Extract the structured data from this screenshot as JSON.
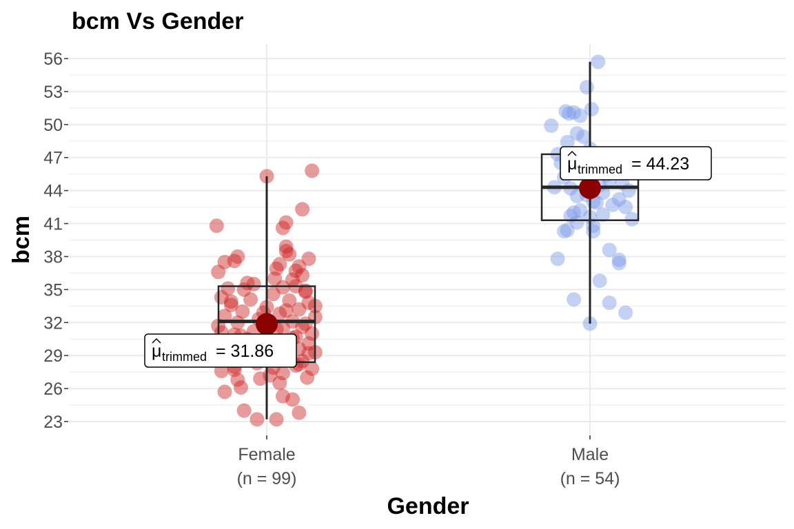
{
  "chart_data": {
    "type": "box-violin-scatter",
    "title": "bcm Vs Gender",
    "xlabel": "Gender",
    "ylabel": "bcm",
    "ylim": [
      22,
      57
    ],
    "yticks": [
      23,
      26,
      29,
      32,
      35,
      38,
      41,
      44,
      47,
      50,
      53,
      56
    ],
    "grid": true,
    "categories": [
      {
        "name": "Female",
        "n_label": "(n = 99)",
        "color": "#cc2222",
        "box": {
          "q1": 28.4,
          "median": 32.1,
          "q3": 35.3,
          "whisker_low": 23.2,
          "whisker_high": 45.3
        },
        "trimmed_mean": 31.86,
        "annotation_value": "= 31.86",
        "points": [
          45.3,
          45.8,
          42.3,
          41.1,
          40.8,
          40.6,
          38.9,
          38.2,
          38.0,
          37.8,
          37.6,
          37.5,
          37.1,
          36.9,
          36.6,
          36.3,
          36.0,
          35.9,
          35.5,
          35.3,
          35.2,
          35.0,
          34.8,
          34.6,
          34.3,
          34.1,
          34.0,
          33.8,
          33.6,
          33.4,
          33.2,
          33.0,
          32.8,
          32.6,
          32.5,
          32.3,
          32.1,
          32.0,
          31.9,
          31.7,
          31.5,
          31.4,
          31.2,
          31.0,
          30.9,
          30.7,
          30.5,
          30.3,
          30.1,
          30.0,
          29.9,
          29.8,
          29.6,
          29.4,
          29.3,
          29.1,
          29.0,
          28.8,
          28.6,
          28.5,
          28.3,
          28.1,
          28.0,
          27.9,
          27.8,
          27.6,
          27.4,
          27.2,
          27.0,
          26.8,
          26.5,
          26.1,
          25.7,
          25.3,
          25.0,
          24.0,
          23.8,
          23.2,
          23.2,
          36.7,
          35.6,
          34.9,
          33.9,
          33.1,
          32.9,
          31.6,
          31.1,
          30.6,
          29.7,
          29.2,
          28.7,
          27.7,
          37.3,
          35.1,
          33.5,
          30.8,
          28.2,
          26.9,
          38.5
        ],
        "jitter": [
          0.0,
          0.28,
          0.22,
          0.12,
          -0.31,
          0.1,
          0.12,
          0.14,
          -0.18,
          0.26,
          -0.2,
          -0.26,
          0.2,
          0.06,
          -0.3,
          0.22,
          0.05,
          0.16,
          -0.08,
          0.18,
          0.1,
          -0.14,
          0.24,
          0.04,
          -0.28,
          -0.1,
          0.14,
          0.26,
          -0.22,
          0.0,
          0.2,
          -0.15,
          0.08,
          -0.26,
          0.3,
          -0.05,
          0.16,
          -0.18,
          0.24,
          -0.3,
          0.1,
          0.06,
          -0.08,
          0.28,
          -0.2,
          0.18,
          -0.12,
          0.02,
          0.26,
          -0.24,
          0.12,
          -0.04,
          0.2,
          -0.16,
          0.3,
          0.06,
          -0.28,
          0.14,
          -0.1,
          0.22,
          -0.06,
          0.18,
          -0.2,
          0.04,
          0.28,
          -0.28,
          0.1,
          0.02,
          0.25,
          -0.18,
          0.08,
          -0.16,
          -0.26,
          0.1,
          0.16,
          -0.14,
          0.2,
          -0.06,
          0.06,
          0.18,
          -0.12,
          0.24,
          -0.22,
          0.12,
          -0.02,
          0.22,
          -0.28,
          0.16,
          -0.1,
          0.26,
          0.02,
          -0.2,
          0.08,
          -0.24,
          0.3,
          -0.16,
          0.2,
          -0.04,
          0.12
        ],
        "annotation_pos": "bottom-left"
      },
      {
        "name": "Male",
        "n_label": "(n = 54)",
        "color": "#7b9ae6",
        "box": {
          "q1": 41.3,
          "median": 44.3,
          "q3": 47.3,
          "whisker_low": 31.9,
          "whisker_high": 55.7
        },
        "trimmed_mean": 44.23,
        "annotation_value": "= 44.23",
        "points": [
          55.7,
          53.4,
          51.4,
          51.2,
          51.1,
          51.0,
          50.8,
          49.9,
          49.2,
          48.9,
          48.4,
          47.8,
          47.3,
          46.9,
          46.5,
          46.2,
          45.9,
          45.6,
          45.2,
          44.9,
          44.7,
          44.5,
          44.3,
          44.2,
          44.0,
          43.8,
          43.5,
          43.2,
          43.0,
          42.7,
          42.5,
          42.2,
          42.0,
          41.8,
          41.6,
          41.4,
          41.1,
          40.8,
          40.4,
          40.3,
          40.3,
          38.6,
          37.8,
          37.7,
          37.4,
          35.8,
          34.1,
          33.8,
          32.9,
          31.9,
          45.4,
          43.6,
          42.9,
          41.7
        ],
        "jitter": [
          0.05,
          -0.02,
          0.01,
          -0.15,
          -0.1,
          -0.13,
          -0.06,
          -0.24,
          -0.08,
          -0.04,
          -0.14,
          0.0,
          -0.2,
          0.1,
          -0.18,
          0.14,
          -0.04,
          0.16,
          -0.16,
          0.12,
          0.2,
          0.06,
          -0.22,
          -0.12,
          0.24,
          0.08,
          -0.08,
          0.18,
          0.02,
          0.14,
          0.22,
          -0.06,
          -0.1,
          0.08,
          0.0,
          0.26,
          -0.08,
          0.02,
          -0.14,
          -0.16,
          0.02,
          0.12,
          -0.2,
          0.18,
          0.18,
          0.06,
          -0.1,
          0.12,
          0.22,
          0.0,
          0.1,
          -0.02,
          0.04,
          -0.12
        ],
        "annotation_pos": "top-left"
      }
    ]
  }
}
